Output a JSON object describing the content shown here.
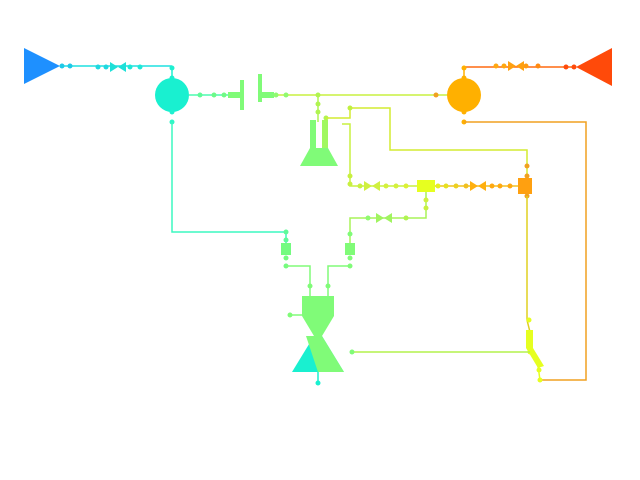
{
  "diagram": {
    "kind": "rocket-engine-flow-schematic",
    "text_labels": [],
    "colors": {
      "fuel_inlet": "#1e90ff",
      "fuel_cool": "#19f0d0",
      "fuel_mid": "#4cfbb0",
      "mix": "#80fb78",
      "mix_yellow": "#c8f040",
      "yellow": "#e6ff20",
      "ox_orange": "#ffb000",
      "ox_dark": "#ff4a0a",
      "line_orange": "#f0a020"
    },
    "components": [
      {
        "id": "fuel-inlet",
        "icon": "triangle-right-icon"
      },
      {
        "id": "oxidizer-inlet",
        "icon": "triangle-left-icon"
      },
      {
        "id": "fuel-pump",
        "icon": "circle-icon"
      },
      {
        "id": "oxidizer-pump",
        "icon": "circle-icon"
      },
      {
        "id": "turbine",
        "icon": "turbine-icon"
      },
      {
        "id": "gas-generator",
        "icon": "flask-icon"
      },
      {
        "id": "combustion-chamber",
        "icon": "nozzle-icon"
      }
    ]
  }
}
